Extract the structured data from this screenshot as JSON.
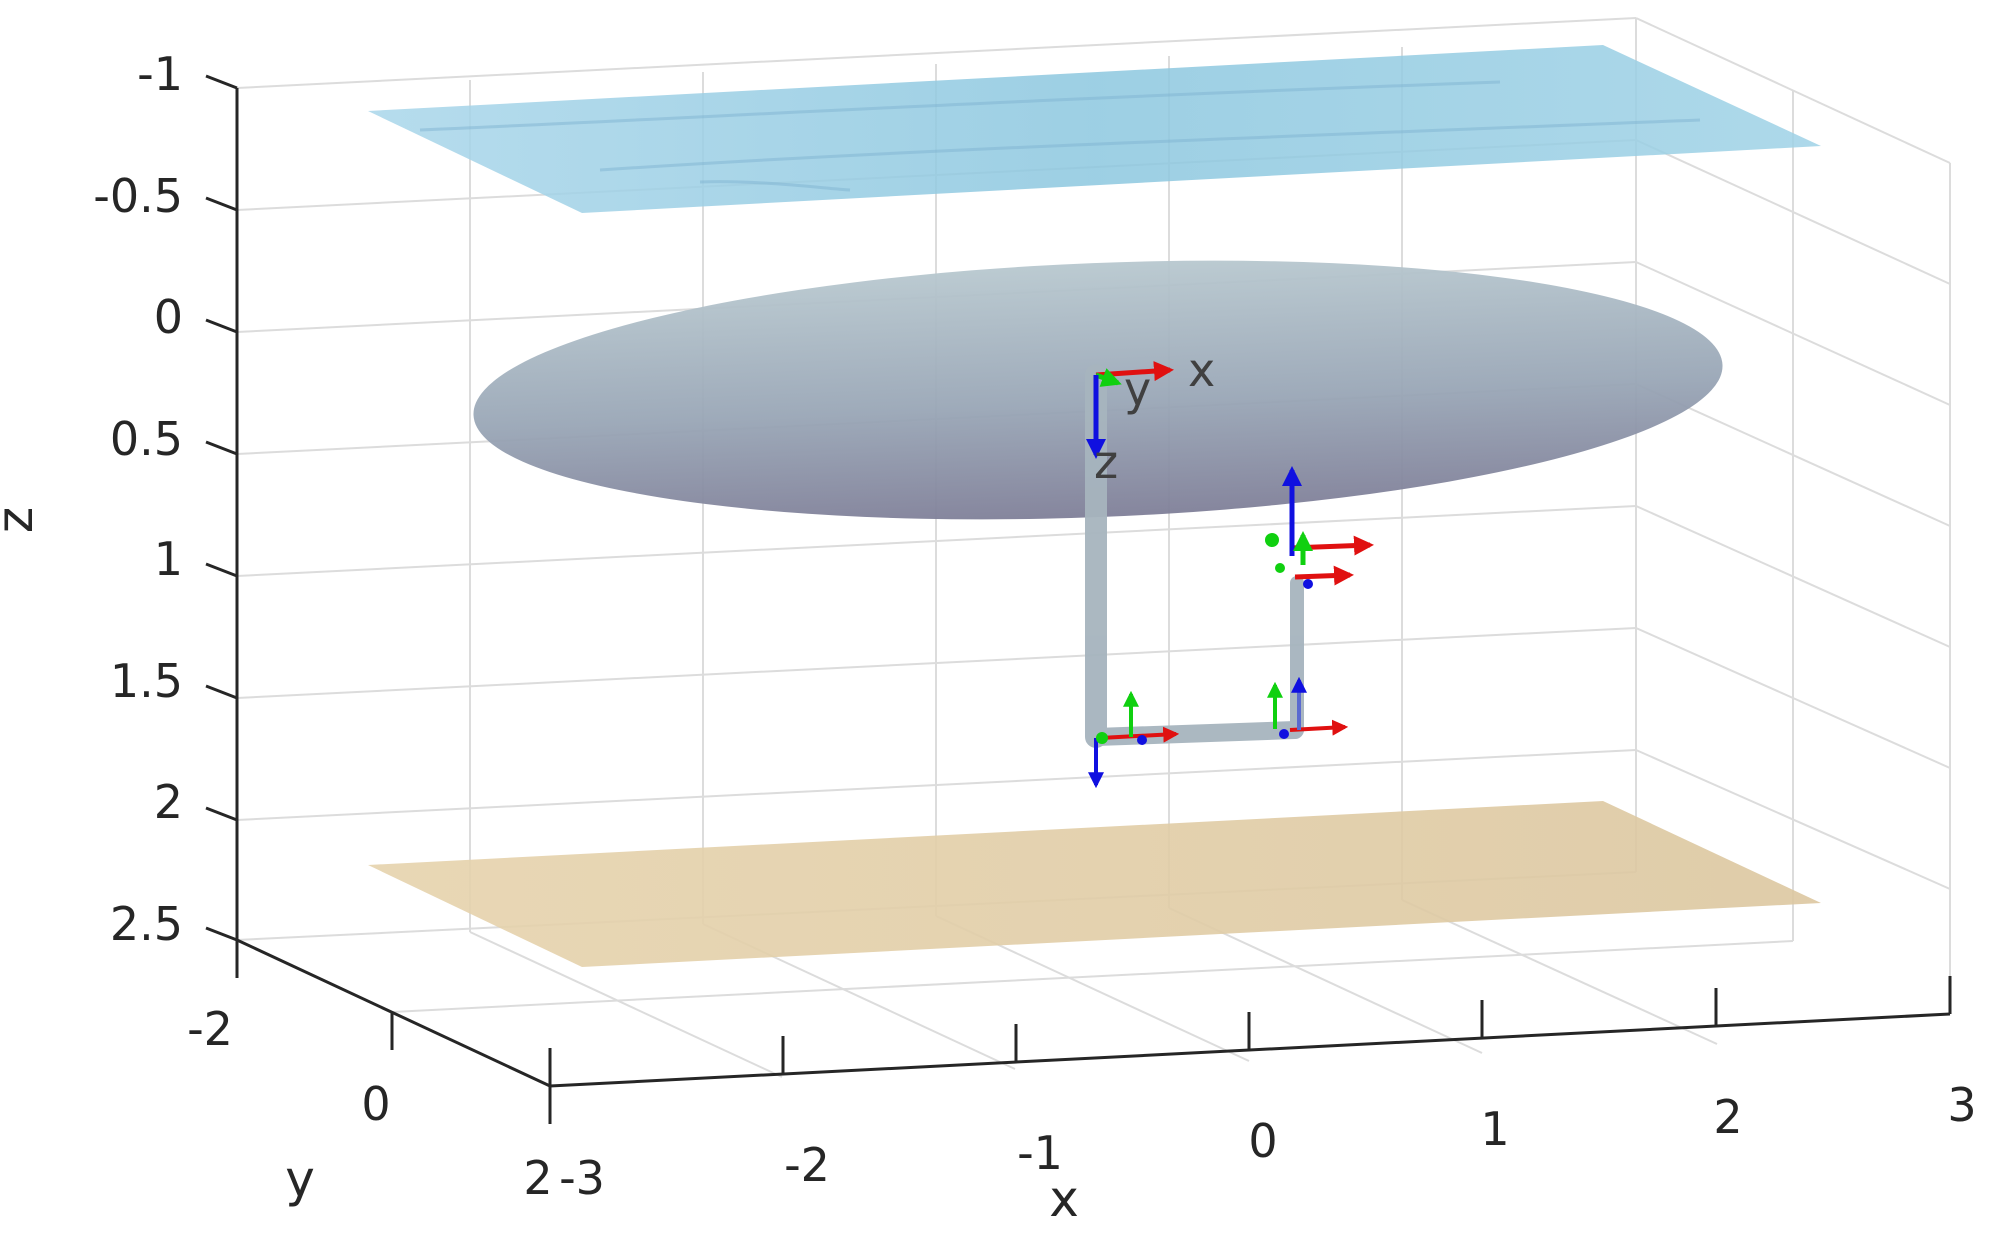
{
  "figure": {
    "axis_labels": {
      "x": "x",
      "y": "y",
      "z": "z"
    },
    "z_ticks": [
      "-1",
      "-0.5",
      "0",
      "0.5",
      "1",
      "1.5",
      "2",
      "2.5"
    ],
    "y_ticks": [
      "-2",
      "0",
      "2"
    ],
    "x_ticks": [
      "-3",
      "-2",
      "-1",
      "0",
      "1",
      "2",
      "3"
    ],
    "body_frame_labels": {
      "x": "x",
      "y": "y",
      "z": "z"
    },
    "colors": {
      "water_surface": "#8ec8e0",
      "vehicle_hull": "#8e9db0",
      "sea_floor": "#e2cfa8",
      "manipulator_link": "#a6b4be",
      "frame_x_axis": "#e01010",
      "frame_y_axis": "#10d010",
      "frame_z_axis": "#1010e0",
      "grid": "#dcdcdc",
      "axes": "#262626"
    }
  }
}
